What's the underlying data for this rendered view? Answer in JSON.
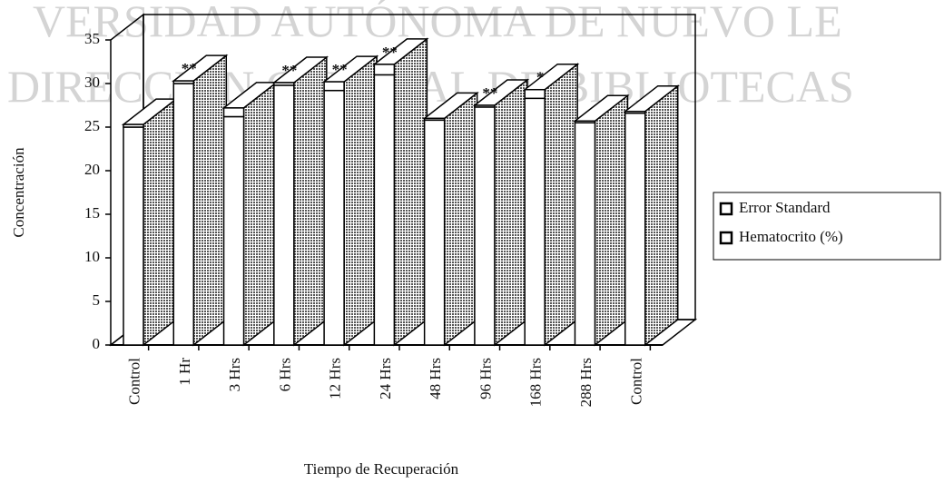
{
  "watermark": [
    "VERSIDAD AUTÓNOMA DE NUEVO LE",
    "DIRECCIÓN GENERAL DE BIBLIOTECAS"
  ],
  "chart_data": {
    "type": "bar3d_stacked",
    "y_label": "Concentración",
    "x_label": "Tiempo de Recuperación",
    "categories": [
      "Control",
      "1 Hr",
      "3 Hrs",
      "6 Hrs",
      "12 Hrs",
      "24 Hrs",
      "48 Hrs",
      "96 Hrs",
      "168 Hrs",
      "288 Hrs",
      "Control"
    ],
    "series": [
      {
        "name": "Hematocrito (%)",
        "color": "#ffffff",
        "values": [
          25,
          30,
          26.2,
          29.8,
          29.2,
          31,
          25.8,
          27.3,
          28.3,
          25.5,
          26.6
        ]
      },
      {
        "name": "Error Standard",
        "color": "#ffffff",
        "values": [
          0.3,
          0.3,
          1,
          0.3,
          1,
          1.2,
          0.2,
          0.2,
          1,
          0.2,
          0.2
        ]
      }
    ],
    "significance": [
      null,
      "**",
      null,
      "**",
      "**",
      "**",
      null,
      "**",
      "*",
      null,
      null
    ],
    "side_color": "#9a9a9a",
    "ylim": [
      0,
      35
    ],
    "yticks": [
      0,
      5,
      10,
      15,
      20,
      25,
      30,
      35
    ]
  }
}
